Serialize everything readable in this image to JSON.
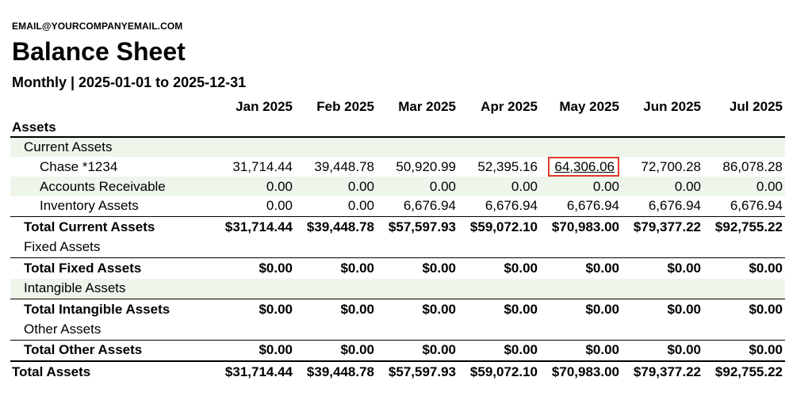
{
  "header": {
    "email": "EMAIL@YOURCOMPANYEMAIL.COM",
    "title": "Balance Sheet",
    "subtitle": "Monthly | 2025-01-01 to 2025-12-31"
  },
  "months": [
    "Jan 2025",
    "Feb 2025",
    "Mar 2025",
    "Apr 2025",
    "May 2025",
    "Jun 2025",
    "Jul 2025"
  ],
  "section": "Assets",
  "current_assets": {
    "label": "Current Assets",
    "items": [
      {
        "label": "Chase *1234",
        "values": [
          "31,714.44",
          "39,448.78",
          "50,920.99",
          "52,395.16",
          "64,306.06",
          "72,700.28",
          "86,078.28"
        ]
      },
      {
        "label": "Accounts Receivable",
        "values": [
          "0.00",
          "0.00",
          "0.00",
          "0.00",
          "0.00",
          "0.00",
          "0.00"
        ]
      },
      {
        "label": "Inventory Assets",
        "values": [
          "0.00",
          "0.00",
          "6,676.94",
          "6,676.94",
          "6,676.94",
          "6,676.94",
          "6,676.94"
        ]
      }
    ],
    "total_label": "Total Current Assets",
    "totals": [
      "$31,714.44",
      "$39,448.78",
      "$57,597.93",
      "$59,072.10",
      "$70,983.00",
      "$79,377.22",
      "$92,755.22"
    ]
  },
  "fixed_assets": {
    "label": "Fixed Assets",
    "total_label": "Total Fixed Assets",
    "totals": [
      "$0.00",
      "$0.00",
      "$0.00",
      "$0.00",
      "$0.00",
      "$0.00",
      "$0.00"
    ]
  },
  "intangible_assets": {
    "label": "Intangible Assets",
    "total_label": "Total Intangible Assets",
    "totals": [
      "$0.00",
      "$0.00",
      "$0.00",
      "$0.00",
      "$0.00",
      "$0.00",
      "$0.00"
    ]
  },
  "other_assets": {
    "label": "Other Assets",
    "total_label": "Total Other Assets",
    "totals": [
      "$0.00",
      "$0.00",
      "$0.00",
      "$0.00",
      "$0.00",
      "$0.00",
      "$0.00"
    ]
  },
  "total_assets": {
    "label": "Total Assets",
    "totals": [
      "$31,714.44",
      "$39,448.78",
      "$57,597.93",
      "$59,072.10",
      "$70,983.00",
      "$79,377.22",
      "$92,755.22"
    ]
  },
  "highlight_color": "#e03b2a",
  "row_shade_color": "#eef5ea"
}
